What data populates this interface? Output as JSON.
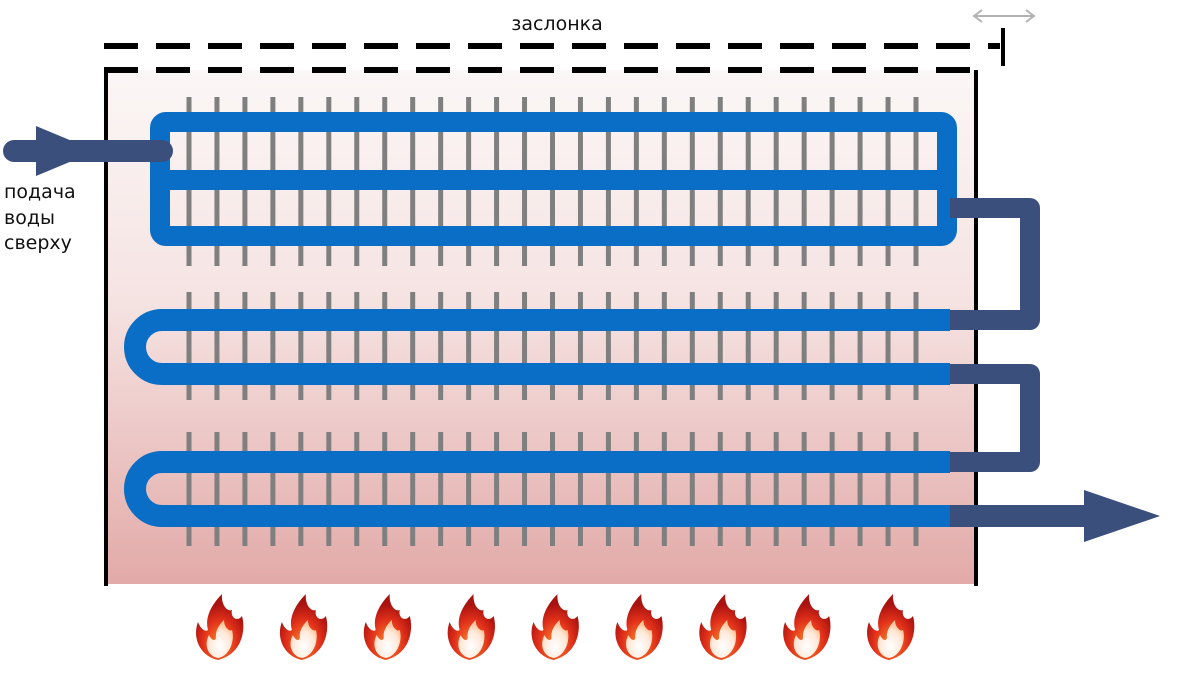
{
  "labels": {
    "damper": "заслонка",
    "inlet_line1": "подача",
    "inlet_line2": "воды",
    "inlet_line3": "сверху"
  },
  "colors": {
    "pipe": "#0a6ec6",
    "connector": "#3b4f7c",
    "fins": "#7f7f7f",
    "frame": "#000000",
    "gradient_top": "#fbf5f4",
    "gradient_bottom": "#e2aaa8",
    "move_arrow": "#b3b3b3"
  },
  "icons": {
    "flame": "flame-icon",
    "inlet_arrow": "inlet-arrow-icon",
    "outlet_arrow": "outlet-arrow-icon",
    "move_arrow": "double-arrow-icon"
  },
  "counts": {
    "fins": 27,
    "flames": 9
  }
}
